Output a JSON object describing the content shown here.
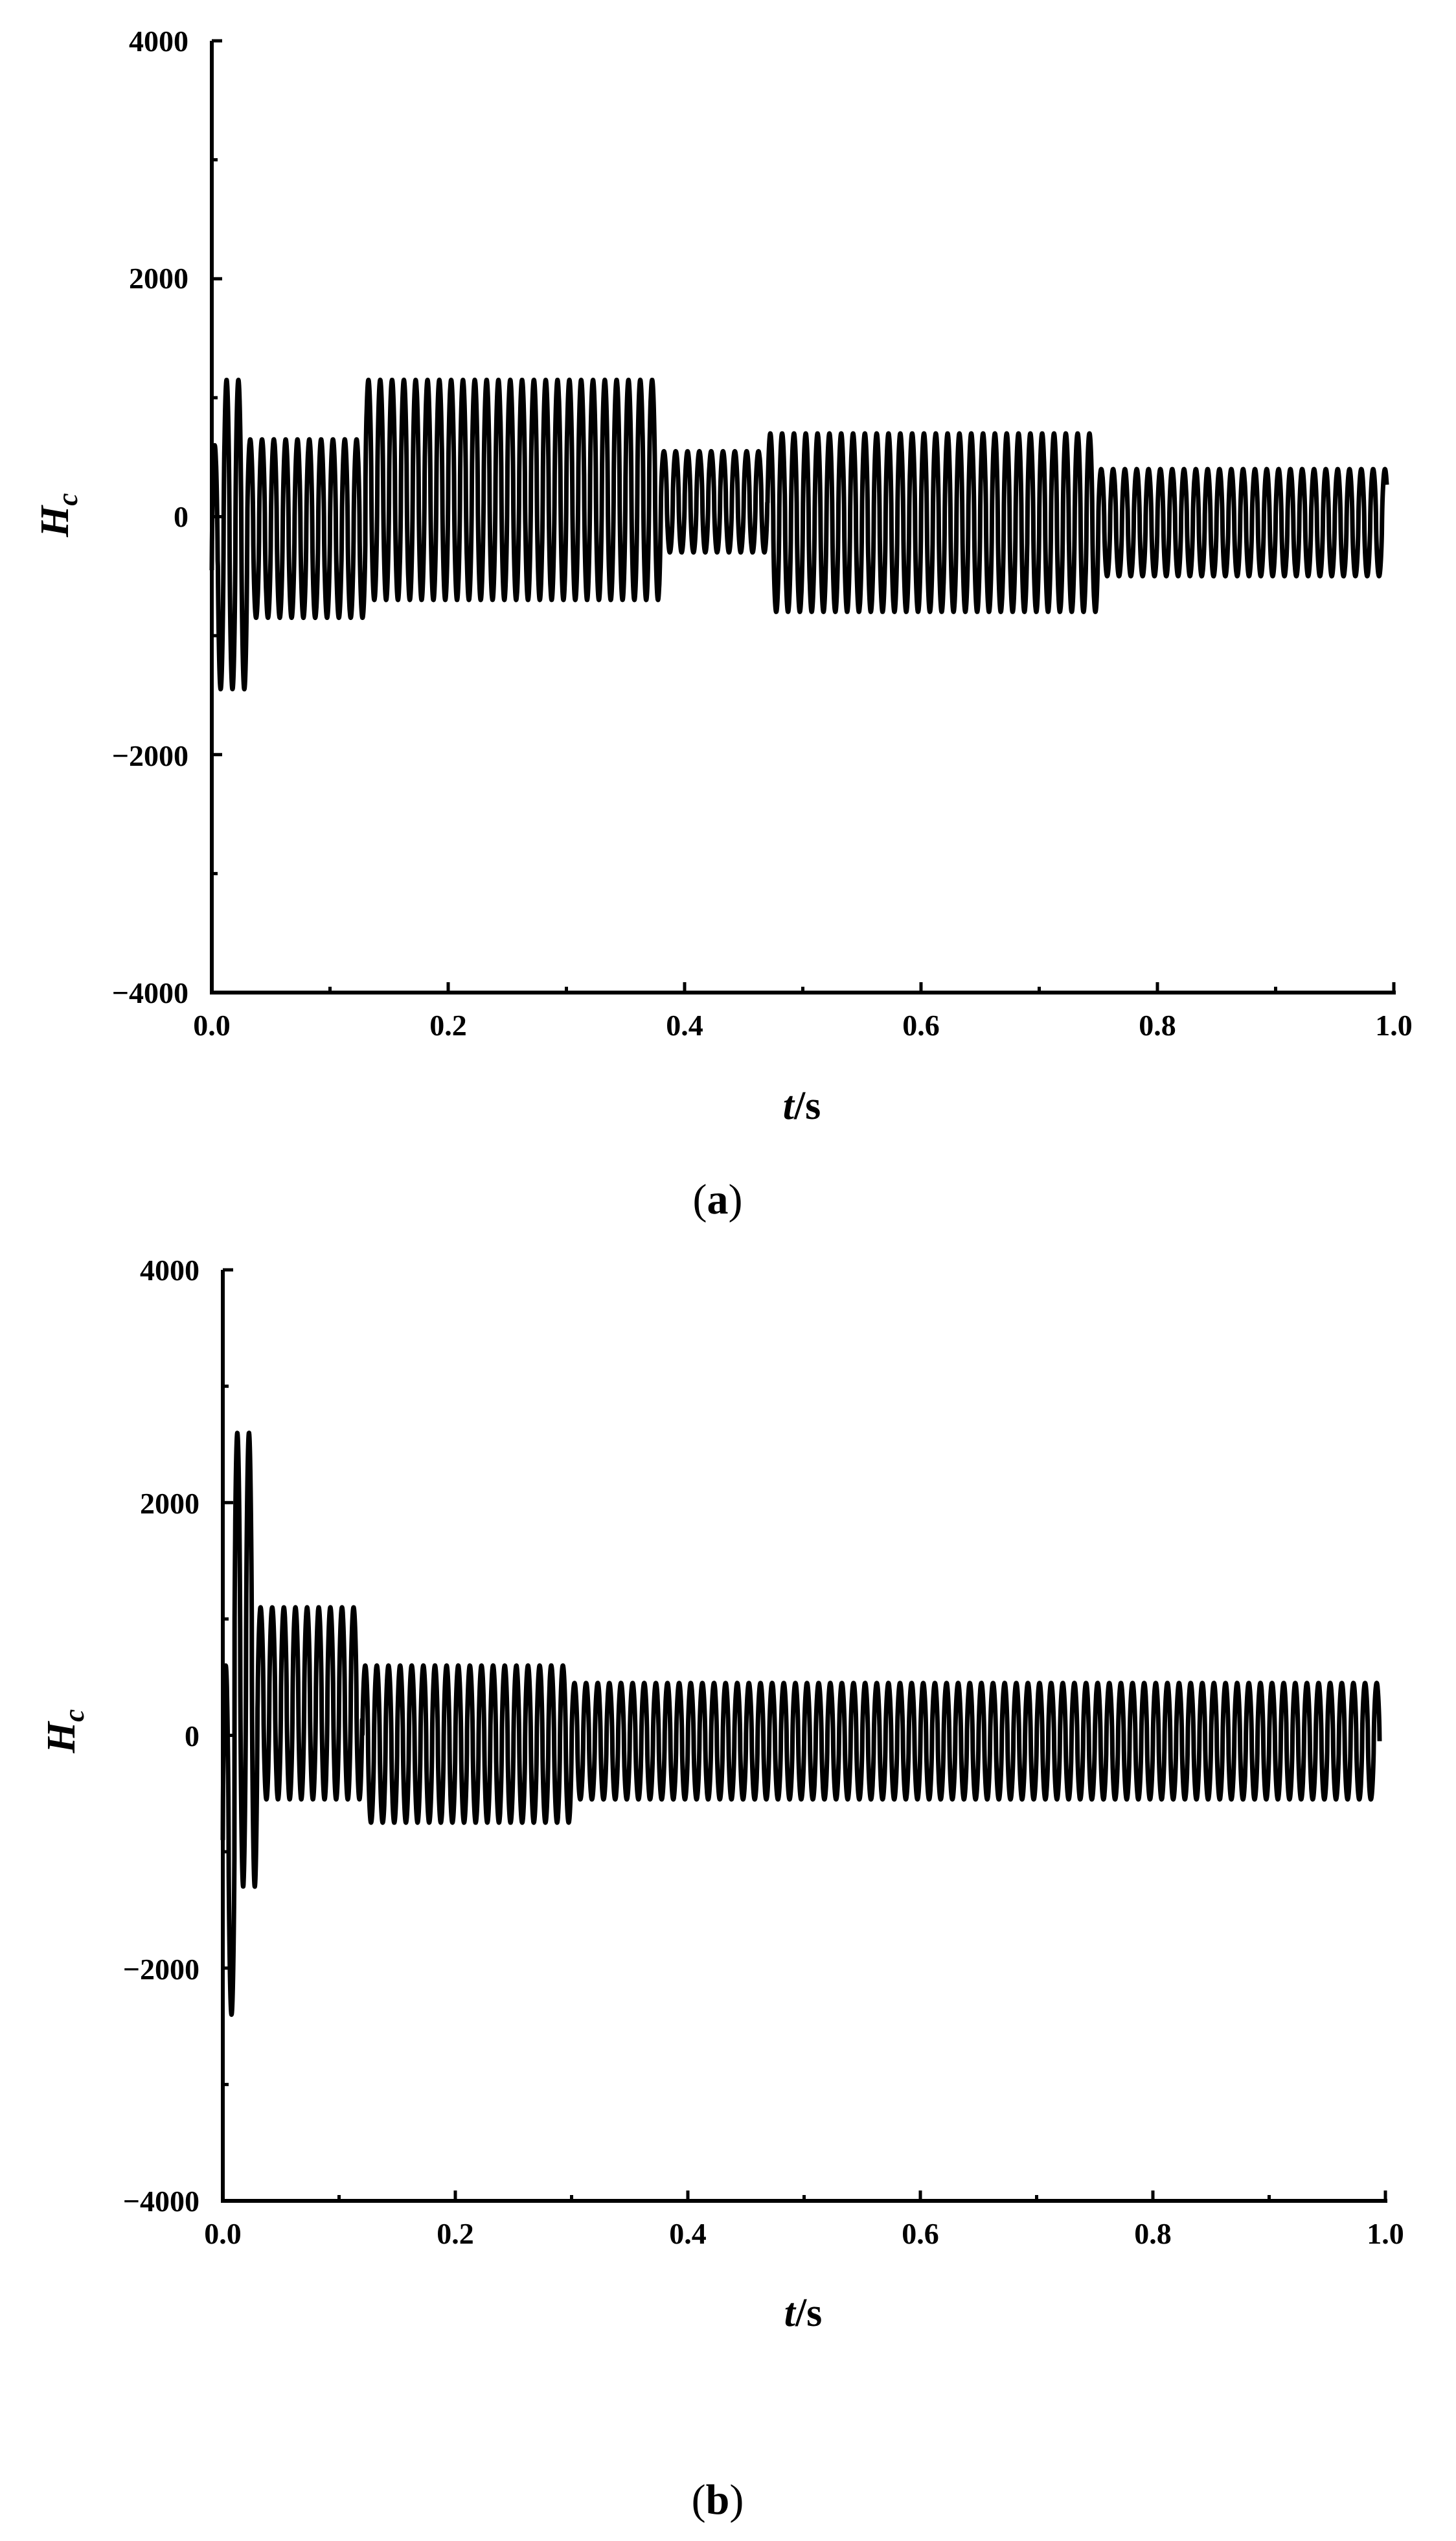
{
  "figure": {
    "panels": [
      {
        "caption_open": "(",
        "caption_letter": "a",
        "caption_close": ")"
      },
      {
        "caption_open": "(",
        "caption_letter": "b",
        "caption_close": ")"
      }
    ]
  },
  "chart_data": [
    {
      "type": "line",
      "xlabel_italic": "t",
      "xlabel_unit": "/s",
      "ylabel_main": "H",
      "ylabel_sub": "c",
      "xlim": [
        0.0,
        1.0
      ],
      "ylim": [
        -4000,
        4000
      ],
      "xticks": [
        "0.0",
        "0.2",
        "0.4",
        "0.6",
        "0.8",
        "1.0"
      ],
      "yticks": [
        "4000",
        "2000",
        "0",
        "−2000",
        "−4000"
      ],
      "grid": false,
      "line_color": "#000000",
      "signal": {
        "frequency_hz": 100,
        "segments": [
          {
            "t": [
              0.0,
              0.005
            ],
            "min": -1500,
            "max": 600
          },
          {
            "t": [
              0.005,
              0.03
            ],
            "min": -1450,
            "max": 1150
          },
          {
            "t": [
              0.03,
              0.13
            ],
            "min": -850,
            "max": 650
          },
          {
            "t": [
              0.13,
              0.38
            ],
            "min": -700,
            "max": 1150
          },
          {
            "t": [
              0.38,
              0.47
            ],
            "min": -300,
            "max": 550
          },
          {
            "t": [
              0.47,
              0.75
            ],
            "min": -800,
            "max": 700
          },
          {
            "t": [
              0.75,
              1.0
            ],
            "min": -500,
            "max": 400
          }
        ]
      }
    },
    {
      "type": "line",
      "xlabel_italic": "t",
      "xlabel_unit": "/s",
      "ylabel_main": "H",
      "ylabel_sub": "c",
      "xlim": [
        0.0,
        1.0
      ],
      "ylim": [
        -4000,
        4000
      ],
      "xticks": [
        "0.0",
        "0.2",
        "0.4",
        "0.6",
        "0.8",
        "1.0"
      ],
      "yticks": [
        "4000",
        "2000",
        "0",
        "−2000",
        "−4000"
      ],
      "grid": false,
      "line_color": "#000000",
      "signal": {
        "frequency_hz": 100,
        "segments": [
          {
            "t": [
              0.0,
              0.01
            ],
            "min": -2400,
            "max": 600
          },
          {
            "t": [
              0.01,
              0.03
            ],
            "min": -1300,
            "max": 2600
          },
          {
            "t": [
              0.03,
              0.12
            ],
            "min": -550,
            "max": 1100
          },
          {
            "t": [
              0.12,
              0.3
            ],
            "min": -750,
            "max": 600
          },
          {
            "t": [
              0.3,
              1.0
            ],
            "min": -550,
            "max": 450
          }
        ]
      }
    }
  ]
}
